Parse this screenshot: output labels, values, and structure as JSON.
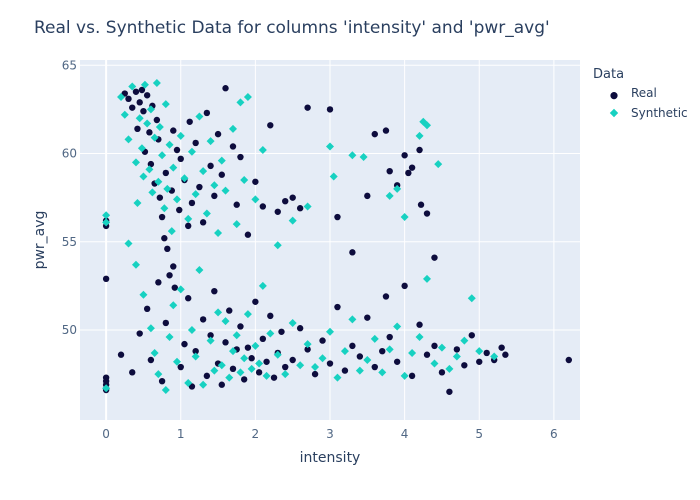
{
  "chart_data": {
    "type": "scatter",
    "title": "Real vs. Synthetic Data for columns 'intensity' and 'pwr_avg'",
    "xlabel": "intensity",
    "ylabel": "pwr_avg",
    "xlim": [
      -0.35,
      6.35
    ],
    "ylim": [
      44.9,
      65.3
    ],
    "xticks": [
      0,
      1,
      2,
      3,
      4,
      5,
      6
    ],
    "yticks": [
      50,
      55,
      60,
      65
    ],
    "grid": true,
    "legend": {
      "title": "Data",
      "position": "top-right"
    },
    "colors": {
      "Real": "#0d0c3d",
      "Synthetic": "#17d1c1",
      "plot_bg": "#e5ecf6",
      "grid": "#ffffff"
    },
    "series": [
      {
        "name": "Real",
        "marker": "circle",
        "points": [
          [
            0,
            56.2
          ],
          [
            0,
            55.9
          ],
          [
            0,
            52.9
          ],
          [
            0,
            47.3
          ],
          [
            0,
            47.1
          ],
          [
            0,
            46.9
          ],
          [
            0,
            46.6
          ],
          [
            0.25,
            63.4
          ],
          [
            0.3,
            63.1
          ],
          [
            0.35,
            62.6
          ],
          [
            0.4,
            63.5
          ],
          [
            0.42,
            61.4
          ],
          [
            0.45,
            62.9
          ],
          [
            0.48,
            63.6
          ],
          [
            0.5,
            62.4
          ],
          [
            0.52,
            60.1
          ],
          [
            0.55,
            63.3
          ],
          [
            0.58,
            61.2
          ],
          [
            0.6,
            59.4
          ],
          [
            0.62,
            62.7
          ],
          [
            0.65,
            58.3
          ],
          [
            0.68,
            61.9
          ],
          [
            0.7,
            60.8
          ],
          [
            0.72,
            57.5
          ],
          [
            0.75,
            56.4
          ],
          [
            0.78,
            55.2
          ],
          [
            0.8,
            58.9
          ],
          [
            0.82,
            54.6
          ],
          [
            0.85,
            53.1
          ],
          [
            0.88,
            57.9
          ],
          [
            0.9,
            61.3
          ],
          [
            0.92,
            52.4
          ],
          [
            0.95,
            60.2
          ],
          [
            0.98,
            56.8
          ],
          [
            1.0,
            59.7
          ],
          [
            1.05,
            58.5
          ],
          [
            1.1,
            55.9
          ],
          [
            1.12,
            61.8
          ],
          [
            1.15,
            57.2
          ],
          [
            1.2,
            60.6
          ],
          [
            1.25,
            58.1
          ],
          [
            1.3,
            56.1
          ],
          [
            1.35,
            62.3
          ],
          [
            1.4,
            59.3
          ],
          [
            1.45,
            57.6
          ],
          [
            1.5,
            61.1
          ],
          [
            1.55,
            58.8
          ],
          [
            1.6,
            63.7
          ],
          [
            1.7,
            60.4
          ],
          [
            1.75,
            57.1
          ],
          [
            1.8,
            59.8
          ],
          [
            1.9,
            55.4
          ],
          [
            2.0,
            58.4
          ],
          [
            2.1,
            57.0
          ],
          [
            2.2,
            61.6
          ],
          [
            2.3,
            56.7
          ],
          [
            2.4,
            57.3
          ],
          [
            2.5,
            57.5
          ],
          [
            2.6,
            56.9
          ],
          [
            2.7,
            62.6
          ],
          [
            3.0,
            62.5
          ],
          [
            3.1,
            56.4
          ],
          [
            3.3,
            54.4
          ],
          [
            3.5,
            57.6
          ],
          [
            3.6,
            61.1
          ],
          [
            3.75,
            61.3
          ],
          [
            3.8,
            59.0
          ],
          [
            3.9,
            58.2
          ],
          [
            4.0,
            59.9
          ],
          [
            4.05,
            58.9
          ],
          [
            4.1,
            59.2
          ],
          [
            4.2,
            60.2
          ],
          [
            4.22,
            57.1
          ],
          [
            4.3,
            56.6
          ],
          [
            4.4,
            54.1
          ],
          [
            0.2,
            48.6
          ],
          [
            0.35,
            47.6
          ],
          [
            0.45,
            49.8
          ],
          [
            0.55,
            51.2
          ],
          [
            0.6,
            48.3
          ],
          [
            0.7,
            52.7
          ],
          [
            0.75,
            47.1
          ],
          [
            0.8,
            50.4
          ],
          [
            0.9,
            53.6
          ],
          [
            1.0,
            47.9
          ],
          [
            1.05,
            49.2
          ],
          [
            1.1,
            51.8
          ],
          [
            1.15,
            46.8
          ],
          [
            1.2,
            48.8
          ],
          [
            1.3,
            50.6
          ],
          [
            1.35,
            47.4
          ],
          [
            1.4,
            49.7
          ],
          [
            1.45,
            52.2
          ],
          [
            1.5,
            48.1
          ],
          [
            1.55,
            46.9
          ],
          [
            1.6,
            49.3
          ],
          [
            1.65,
            51.1
          ],
          [
            1.7,
            47.8
          ],
          [
            1.75,
            48.9
          ],
          [
            1.8,
            50.2
          ],
          [
            1.85,
            47.2
          ],
          [
            1.9,
            49.0
          ],
          [
            1.95,
            48.4
          ],
          [
            2.0,
            51.6
          ],
          [
            2.05,
            47.6
          ],
          [
            2.1,
            49.5
          ],
          [
            2.15,
            48.2
          ],
          [
            2.2,
            50.8
          ],
          [
            2.25,
            47.3
          ],
          [
            2.3,
            48.7
          ],
          [
            2.35,
            49.9
          ],
          [
            2.4,
            47.9
          ],
          [
            2.5,
            48.3
          ],
          [
            2.6,
            50.1
          ],
          [
            2.7,
            48.9
          ],
          [
            2.8,
            47.5
          ],
          [
            2.9,
            49.4
          ],
          [
            3.0,
            48.1
          ],
          [
            3.1,
            51.3
          ],
          [
            3.2,
            47.7
          ],
          [
            3.3,
            49.1
          ],
          [
            3.4,
            48.5
          ],
          [
            3.5,
            50.7
          ],
          [
            3.6,
            47.9
          ],
          [
            3.7,
            48.8
          ],
          [
            3.75,
            51.9
          ],
          [
            3.8,
            49.6
          ],
          [
            3.9,
            48.2
          ],
          [
            4.0,
            52.5
          ],
          [
            4.1,
            47.4
          ],
          [
            4.2,
            50.3
          ],
          [
            4.3,
            48.6
          ],
          [
            4.4,
            49.1
          ],
          [
            4.5,
            47.6
          ],
          [
            4.6,
            46.5
          ],
          [
            4.7,
            48.9
          ],
          [
            4.8,
            48.0
          ],
          [
            4.9,
            49.7
          ],
          [
            5.0,
            48.2
          ],
          [
            5.1,
            48.7
          ],
          [
            5.2,
            48.3
          ],
          [
            5.3,
            49.0
          ],
          [
            5.35,
            48.6
          ],
          [
            6.2,
            48.3
          ]
        ]
      },
      {
        "name": "Synthetic",
        "marker": "diamond",
        "points": [
          [
            0,
            56.5
          ],
          [
            0,
            56.1
          ],
          [
            0,
            46.7
          ],
          [
            0.2,
            63.2
          ],
          [
            0.25,
            62.2
          ],
          [
            0.3,
            60.8
          ],
          [
            0.35,
            63.8
          ],
          [
            0.4,
            59.5
          ],
          [
            0.42,
            57.2
          ],
          [
            0.45,
            62.0
          ],
          [
            0.48,
            60.3
          ],
          [
            0.5,
            58.7
          ],
          [
            0.52,
            63.9
          ],
          [
            0.55,
            61.7
          ],
          [
            0.58,
            59.1
          ],
          [
            0.6,
            62.5
          ],
          [
            0.62,
            57.8
          ],
          [
            0.65,
            60.9
          ],
          [
            0.68,
            64.0
          ],
          [
            0.7,
            58.4
          ],
          [
            0.72,
            61.5
          ],
          [
            0.75,
            59.9
          ],
          [
            0.78,
            56.9
          ],
          [
            0.8,
            62.8
          ],
          [
            0.82,
            58.0
          ],
          [
            0.85,
            60.5
          ],
          [
            0.88,
            55.6
          ],
          [
            0.9,
            59.2
          ],
          [
            0.95,
            57.4
          ],
          [
            1.0,
            61.0
          ],
          [
            1.05,
            58.6
          ],
          [
            1.1,
            56.3
          ],
          [
            1.15,
            60.1
          ],
          [
            1.2,
            57.7
          ],
          [
            1.25,
            62.1
          ],
          [
            1.3,
            59.0
          ],
          [
            1.35,
            56.6
          ],
          [
            1.4,
            60.7
          ],
          [
            1.45,
            58.2
          ],
          [
            1.5,
            55.5
          ],
          [
            1.55,
            59.6
          ],
          [
            1.6,
            57.9
          ],
          [
            1.7,
            61.4
          ],
          [
            1.75,
            56.0
          ],
          [
            1.8,
            62.9
          ],
          [
            1.85,
            58.5
          ],
          [
            1.9,
            63.2
          ],
          [
            2.0,
            57.4
          ],
          [
            2.1,
            60.2
          ],
          [
            2.3,
            54.8
          ],
          [
            2.5,
            56.2
          ],
          [
            2.7,
            57.0
          ],
          [
            3.0,
            60.4
          ],
          [
            3.05,
            58.7
          ],
          [
            3.3,
            59.9
          ],
          [
            3.45,
            59.8
          ],
          [
            3.8,
            57.6
          ],
          [
            3.9,
            58.0
          ],
          [
            4.0,
            56.4
          ],
          [
            4.2,
            61.0
          ],
          [
            4.25,
            61.8
          ],
          [
            4.3,
            61.6
          ],
          [
            4.45,
            59.4
          ],
          [
            0.3,
            54.9
          ],
          [
            0.4,
            53.7
          ],
          [
            0.5,
            52.0
          ],
          [
            0.6,
            50.1
          ],
          [
            0.65,
            48.7
          ],
          [
            0.7,
            47.5
          ],
          [
            0.8,
            46.6
          ],
          [
            0.85,
            49.6
          ],
          [
            0.9,
            51.4
          ],
          [
            0.95,
            48.2
          ],
          [
            1.0,
            52.3
          ],
          [
            1.1,
            47.0
          ],
          [
            1.15,
            50.0
          ],
          [
            1.2,
            48.5
          ],
          [
            1.25,
            53.4
          ],
          [
            1.3,
            46.9
          ],
          [
            1.4,
            49.4
          ],
          [
            1.45,
            47.7
          ],
          [
            1.5,
            51.0
          ],
          [
            1.55,
            48.0
          ],
          [
            1.6,
            50.5
          ],
          [
            1.65,
            47.3
          ],
          [
            1.7,
            48.8
          ],
          [
            1.75,
            49.7
          ],
          [
            1.8,
            47.6
          ],
          [
            1.85,
            48.4
          ],
          [
            1.9,
            50.9
          ],
          [
            1.95,
            47.8
          ],
          [
            2.0,
            49.1
          ],
          [
            2.05,
            48.1
          ],
          [
            2.1,
            52.5
          ],
          [
            2.15,
            47.4
          ],
          [
            2.2,
            49.8
          ],
          [
            2.3,
            48.6
          ],
          [
            2.4,
            47.5
          ],
          [
            2.5,
            50.4
          ],
          [
            2.6,
            48.0
          ],
          [
            2.7,
            49.2
          ],
          [
            2.8,
            47.9
          ],
          [
            2.9,
            48.4
          ],
          [
            3.0,
            49.9
          ],
          [
            3.1,
            47.3
          ],
          [
            3.2,
            48.8
          ],
          [
            3.3,
            50.6
          ],
          [
            3.4,
            47.7
          ],
          [
            3.5,
            48.3
          ],
          [
            3.6,
            49.5
          ],
          [
            3.7,
            47.6
          ],
          [
            3.8,
            48.9
          ],
          [
            3.9,
            50.2
          ],
          [
            4.0,
            47.4
          ],
          [
            4.1,
            48.7
          ],
          [
            4.2,
            49.6
          ],
          [
            4.3,
            52.9
          ],
          [
            4.4,
            48.1
          ],
          [
            4.5,
            49.0
          ],
          [
            4.6,
            47.8
          ],
          [
            4.7,
            48.5
          ],
          [
            4.8,
            49.4
          ],
          [
            4.9,
            51.8
          ],
          [
            5.0,
            48.8
          ],
          [
            5.2,
            48.5
          ]
        ]
      }
    ]
  }
}
